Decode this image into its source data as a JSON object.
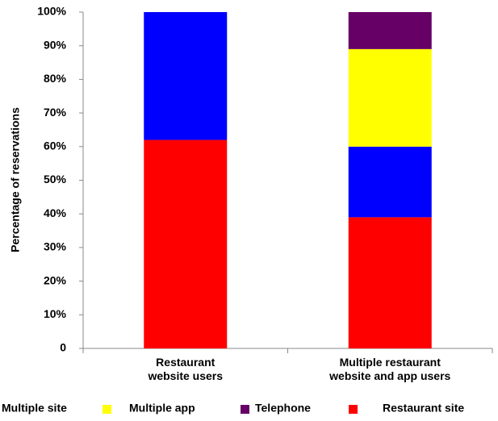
{
  "chart_data": {
    "type": "stacked_bar",
    "y_label": "Percentage of reservations",
    "categories": [
      [
        "Restaurant",
        "website users"
      ],
      [
        "Multiple restaurant",
        "website and app users"
      ]
    ],
    "series": [
      {
        "name": "Restaurant site",
        "color": "#ff0000",
        "values": [
          62,
          39
        ]
      },
      {
        "name": "Multiple site",
        "color": "#0000ff",
        "values": [
          38,
          21
        ]
      },
      {
        "name": "Multiple app",
        "color": "#ffff00",
        "values": [
          0,
          29
        ]
      },
      {
        "name": "Telephone",
        "color": "#660066",
        "values": [
          0,
          11
        ]
      }
    ],
    "ylim": [
      0,
      100
    ],
    "yticks": [
      0,
      {
        "value": 10,
        "label": "10%"
      },
      {
        "value": 20,
        "label": "20%"
      },
      {
        "value": 30,
        "label": "30%"
      },
      {
        "value": 40,
        "label": "40%"
      },
      {
        "value": 50,
        "label": "50%"
      },
      {
        "value": 60,
        "label": "60%"
      },
      {
        "value": 70,
        "label": "70%"
      },
      {
        "value": 80,
        "label": "80%"
      },
      {
        "value": 90,
        "label": "90%"
      },
      {
        "value": 100,
        "label": "100%"
      }
    ],
    "grid": false,
    "legend": "bottom"
  }
}
